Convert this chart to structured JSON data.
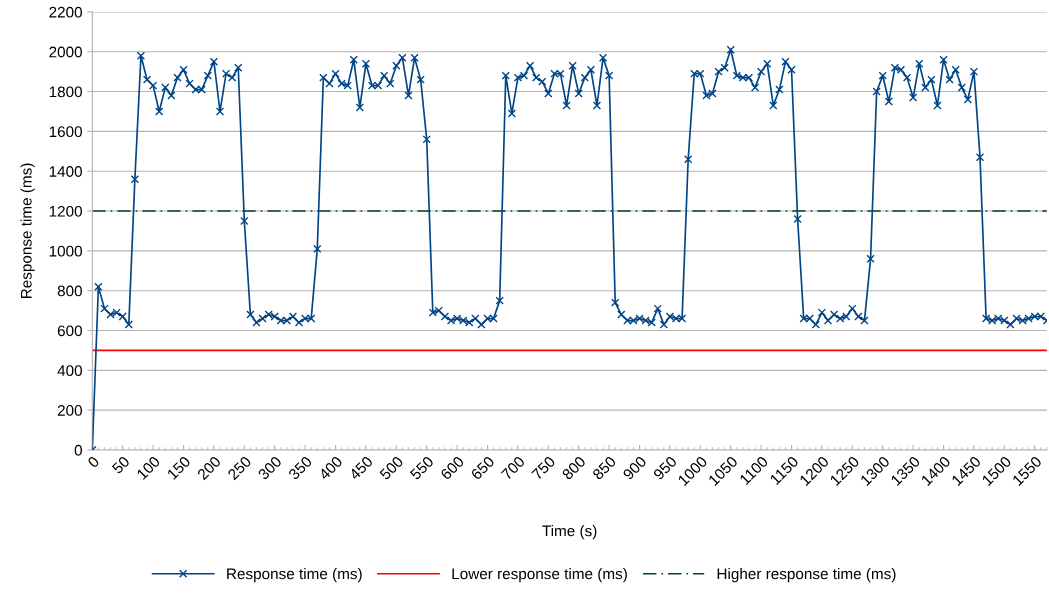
{
  "chart_data": {
    "type": "line",
    "xlabel": "Time (s)",
    "ylabel": "Response time (ms)",
    "xlim": [
      0,
      1570
    ],
    "xticks": [
      0,
      50,
      100,
      150,
      200,
      250,
      300,
      350,
      400,
      450,
      500,
      550,
      600,
      650,
      700,
      750,
      800,
      850,
      900,
      950,
      1000,
      1050,
      1100,
      1150,
      1200,
      1250,
      1300,
      1350,
      1400,
      1450,
      1500,
      1550
    ],
    "ylim": [
      0,
      2200
    ],
    "yticks": [
      0,
      200,
      400,
      600,
      800,
      1000,
      1200,
      1400,
      1600,
      1800,
      2000,
      2200
    ],
    "grid": "y",
    "legend": "bottom",
    "marker": "cross",
    "line_style": "solid",
    "series": [
      {
        "name": "Response time (ms)",
        "color": "#004586",
        "x": [
          0,
          10,
          20,
          30,
          40,
          50,
          60,
          70,
          80,
          90,
          100,
          110,
          120,
          130,
          140,
          150,
          160,
          170,
          180,
          190,
          200,
          210,
          220,
          230,
          240,
          250,
          260,
          270,
          280,
          290,
          300,
          310,
          320,
          330,
          340,
          350,
          360,
          370,
          380,
          390,
          400,
          410,
          420,
          430,
          440,
          450,
          460,
          470,
          480,
          490,
          500,
          510,
          520,
          530,
          540,
          550,
          560,
          570,
          580,
          590,
          600,
          610,
          620,
          630,
          640,
          650,
          660,
          670,
          680,
          690,
          700,
          710,
          720,
          730,
          740,
          750,
          760,
          770,
          780,
          790,
          800,
          810,
          820,
          830,
          840,
          850,
          860,
          870,
          880,
          890,
          900,
          910,
          920,
          930,
          940,
          950,
          960,
          970,
          980,
          990,
          1000,
          1010,
          1020,
          1030,
          1040,
          1050,
          1060,
          1070,
          1080,
          1090,
          1100,
          1110,
          1120,
          1130,
          1140,
          1150,
          1160,
          1170,
          1180,
          1190,
          1200,
          1210,
          1220,
          1230,
          1240,
          1250,
          1260,
          1270,
          1280,
          1290,
          1300,
          1310,
          1320,
          1330,
          1340,
          1350,
          1360,
          1370,
          1380,
          1390,
          1400,
          1410,
          1420,
          1430,
          1440,
          1450,
          1460,
          1470,
          1480,
          1490,
          1500,
          1510,
          1520,
          1530,
          1540,
          1550,
          1560,
          1570
        ],
        "values": [
          0,
          820,
          710,
          680,
          690,
          670,
          630,
          1360,
          1980,
          1860,
          1830,
          1700,
          1820,
          1780,
          1870,
          1910,
          1840,
          1810,
          1810,
          1880,
          1950,
          1700,
          1890,
          1870,
          1920,
          1150,
          680,
          640,
          660,
          680,
          670,
          650,
          650,
          670,
          640,
          660,
          660,
          1010,
          1870,
          1840,
          1890,
          1840,
          1830,
          1960,
          1720,
          1940,
          1830,
          1830,
          1880,
          1840,
          1930,
          1970,
          1780,
          1970,
          1860,
          1560,
          690,
          700,
          670,
          650,
          660,
          650,
          640,
          660,
          630,
          660,
          660,
          750,
          1880,
          1690,
          1870,
          1880,
          1930,
          1870,
          1850,
          1790,
          1890,
          1890,
          1730,
          1930,
          1790,
          1870,
          1910,
          1730,
          1970,
          1880,
          740,
          680,
          650,
          650,
          660,
          650,
          640,
          710,
          630,
          670,
          660,
          660,
          1460,
          1890,
          1890,
          1780,
          1790,
          1900,
          1920,
          2010,
          1880,
          1870,
          1870,
          1820,
          1900,
          1940,
          1730,
          1810,
          1950,
          1910,
          1160,
          660,
          660,
          630,
          690,
          650,
          680,
          660,
          670,
          710,
          670,
          650,
          960,
          1800,
          1880,
          1750,
          1920,
          1910,
          1870,
          1770,
          1940,
          1820,
          1860,
          1730,
          1960,
          1860,
          1910,
          1820,
          1760,
          1900,
          1470,
          660,
          650,
          660,
          650,
          630,
          660,
          650,
          660,
          670,
          670,
          650
        ]
      }
    ],
    "ref_lines": [
      {
        "axis": "y",
        "value": 500,
        "label": "Lower response time (ms)",
        "color": "#ff0000",
        "line_style": "solid"
      },
      {
        "axis": "y",
        "value": 1200,
        "label": "Higher response time (ms)",
        "color": "#004225",
        "line_style": "dashdot"
      }
    ]
  }
}
